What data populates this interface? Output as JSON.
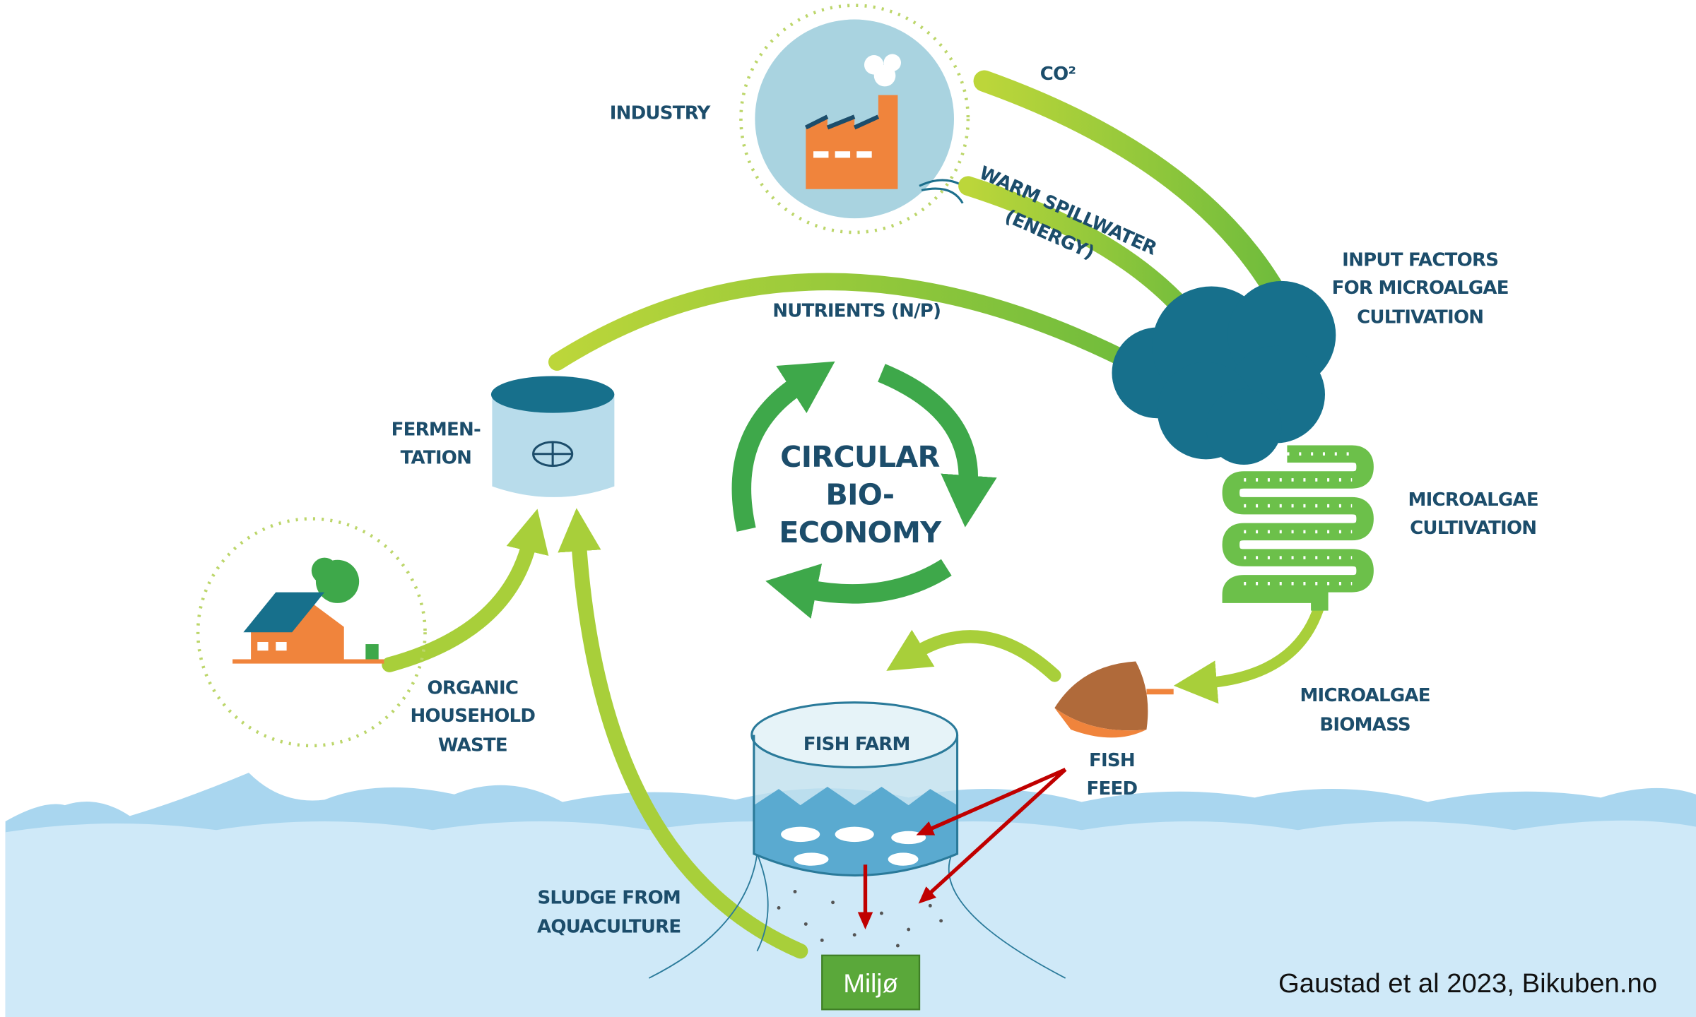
{
  "labels": {
    "industry": "INDUSTRY",
    "co2": "CO²",
    "warm_spillwater": [
      "WARM SPILLWATER",
      "(ENERGY)"
    ],
    "input_factors": [
      "INPUT FACTORS",
      "FOR MICROALGAE",
      "CULTIVATION"
    ],
    "nutrients": "NUTRIENTS (N/P)",
    "fermentation": [
      "FERMEN-",
      "TATION"
    ],
    "circular": [
      "CIRCULAR",
      "BIO-",
      "ECONOMY"
    ],
    "microalgae_cultivation": [
      "MICROALGAE",
      "CULTIVATION"
    ],
    "microalgae_biomass": [
      "MICROALGAE",
      "BIOMASS"
    ],
    "organic_waste": [
      "ORGANIC",
      "HOUSEHOLD",
      "WASTE"
    ],
    "fish_farm": "FISH FARM",
    "fish_feed": [
      "FISH",
      "FEED"
    ],
    "sludge": [
      "SLUDGE FROM",
      "AQUACULTURE"
    ]
  },
  "button": "Miljø",
  "citation": "Gaustad et al 2023, Bikuben.no"
}
